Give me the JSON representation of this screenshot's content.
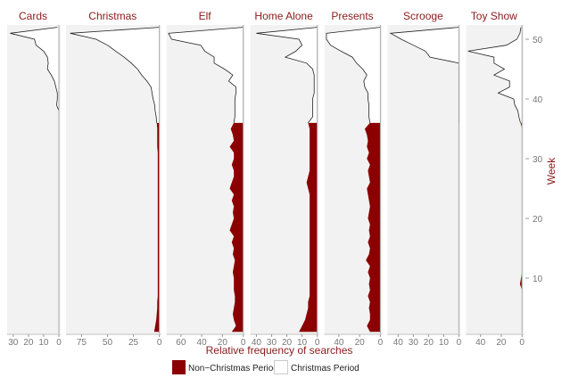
{
  "chart_data": {
    "type": "area",
    "xlabel": "Relative frequency of searches",
    "ylabel": "Week",
    "ylim": [
      1,
      52
    ],
    "y_ticks": [
      10,
      20,
      30,
      40,
      50
    ],
    "grid": false,
    "legend_position": "bottom",
    "legend": [
      {
        "label": "Non−Christmas Period",
        "color": "#8b0000"
      },
      {
        "label": "Christmas Period",
        "color": "#ffffff"
      }
    ],
    "christmas_period_start_week": 37,
    "colors": {
      "non_christmas": "#8b0000",
      "christmas": "#ffffff",
      "panel_bg": "#f2f2f2",
      "title": "#8b1a1a"
    },
    "x_reversed": true,
    "panels": [
      {
        "name": "Cards",
        "xlim": [
          0,
          34
        ],
        "ticks": [
          30,
          20,
          10,
          0
        ],
        "values": [
          0,
          0,
          0,
          0,
          0,
          0,
          0,
          0,
          0,
          0,
          0,
          0,
          0,
          0,
          0,
          0,
          0,
          0,
          0,
          0,
          0,
          0,
          0,
          0,
          0,
          0,
          0,
          0,
          0,
          0,
          0,
          0,
          0,
          0,
          0,
          0,
          0,
          0,
          1.5,
          1,
          1,
          2,
          3,
          5,
          7.5,
          7,
          7.5,
          10,
          15,
          16,
          32,
          1
        ]
      },
      {
        "name": "Christmas",
        "xlim": [
          0,
          90
        ],
        "ticks": [
          75,
          50,
          25,
          0
        ],
        "values": [
          5,
          4,
          3,
          2.5,
          2,
          2,
          1.5,
          1.5,
          1.5,
          1.5,
          1.5,
          1.5,
          1.5,
          1.5,
          1.5,
          1.5,
          1.5,
          1.5,
          1.5,
          1.5,
          1.5,
          1.5,
          1.5,
          1.5,
          1.5,
          1.5,
          1.5,
          1.5,
          1.5,
          1.5,
          1.5,
          2,
          2,
          2,
          2,
          2.5,
          3,
          4,
          4.5,
          6,
          7,
          8,
          12,
          17,
          21,
          27,
          34,
          42,
          50,
          61,
          86,
          0
        ]
      },
      {
        "name": "Elf",
        "xlim": [
          0,
          74
        ],
        "ticks": [
          60,
          40,
          20,
          0
        ],
        "values": [
          11,
          7,
          9,
          10,
          9,
          8,
          8,
          9,
          9,
          9,
          10,
          9,
          8,
          10,
          9,
          11,
          9,
          13,
          11,
          9,
          10,
          9,
          11,
          9,
          13,
          11,
          9,
          9,
          11,
          9,
          9,
          13,
          9,
          10,
          12,
          9,
          8,
          8,
          8,
          8,
          7,
          7,
          14,
          10,
          18,
          28,
          28,
          37,
          41,
          69,
          72,
          0
        ]
      },
      {
        "name": "Home Alone",
        "xlim": [
          0,
          44
        ],
        "ticks": [
          40,
          30,
          20,
          10,
          0
        ],
        "values": [
          12,
          10,
          8,
          7,
          6,
          6,
          5,
          5,
          5,
          5,
          5,
          5,
          5,
          5,
          5,
          5,
          5,
          5,
          5,
          5,
          5,
          5,
          5,
          5,
          6,
          7,
          6,
          5,
          5,
          5,
          5,
          5,
          5,
          5,
          5,
          6,
          3,
          3,
          3,
          3,
          2,
          2,
          2,
          2,
          3,
          7,
          21,
          14,
          10,
          12,
          40,
          0
        ]
      },
      {
        "name": "Presents",
        "xlim": [
          0,
          54
        ],
        "ticks": [
          40,
          20,
          0
        ],
        "values": [
          10,
          13,
          10,
          10,
          11,
          10,
          12,
          10,
          11,
          10,
          12,
          10,
          14,
          11,
          10,
          12,
          10,
          11,
          10,
          12,
          11,
          10,
          11,
          12,
          13,
          10,
          11,
          12,
          10,
          13,
          11,
          13,
          12,
          13,
          15,
          10,
          11,
          11,
          11,
          12,
          12,
          15,
          16,
          13,
          17,
          23,
          27,
          38,
          48,
          52,
          52,
          0
        ]
      },
      {
        "name": "Scrooge",
        "xlim": [
          0,
          47
        ],
        "ticks": [
          40,
          30,
          20,
          10,
          0
        ],
        "values": [
          0,
          0,
          0,
          0,
          0,
          0,
          0,
          0,
          0,
          0,
          0,
          0,
          0,
          0,
          0,
          0,
          0,
          0,
          0,
          0,
          0,
          0,
          0,
          0,
          0,
          0,
          0,
          0,
          0,
          0,
          0,
          0,
          0,
          0,
          0,
          0,
          0,
          0,
          0,
          0,
          0,
          0,
          0,
          0,
          0,
          0,
          19,
          22,
          30,
          38,
          45,
          0
        ]
      },
      {
        "name": "Toy Show",
        "xlim": [
          0,
          54
        ],
        "ticks": [
          40,
          20,
          0
        ],
        "values": [
          0,
          0,
          0,
          0,
          0,
          0,
          0,
          0,
          2,
          1,
          0,
          0,
          0,
          0,
          0,
          0,
          0,
          0,
          0,
          0,
          0,
          0,
          0,
          0,
          0,
          0,
          0,
          0,
          0,
          0,
          0,
          0,
          0,
          0,
          0,
          1.5,
          3,
          4,
          7,
          8,
          23,
          12,
          12,
          27,
          17,
          27,
          27,
          52,
          15,
          5,
          2,
          1
        ]
      }
    ]
  }
}
